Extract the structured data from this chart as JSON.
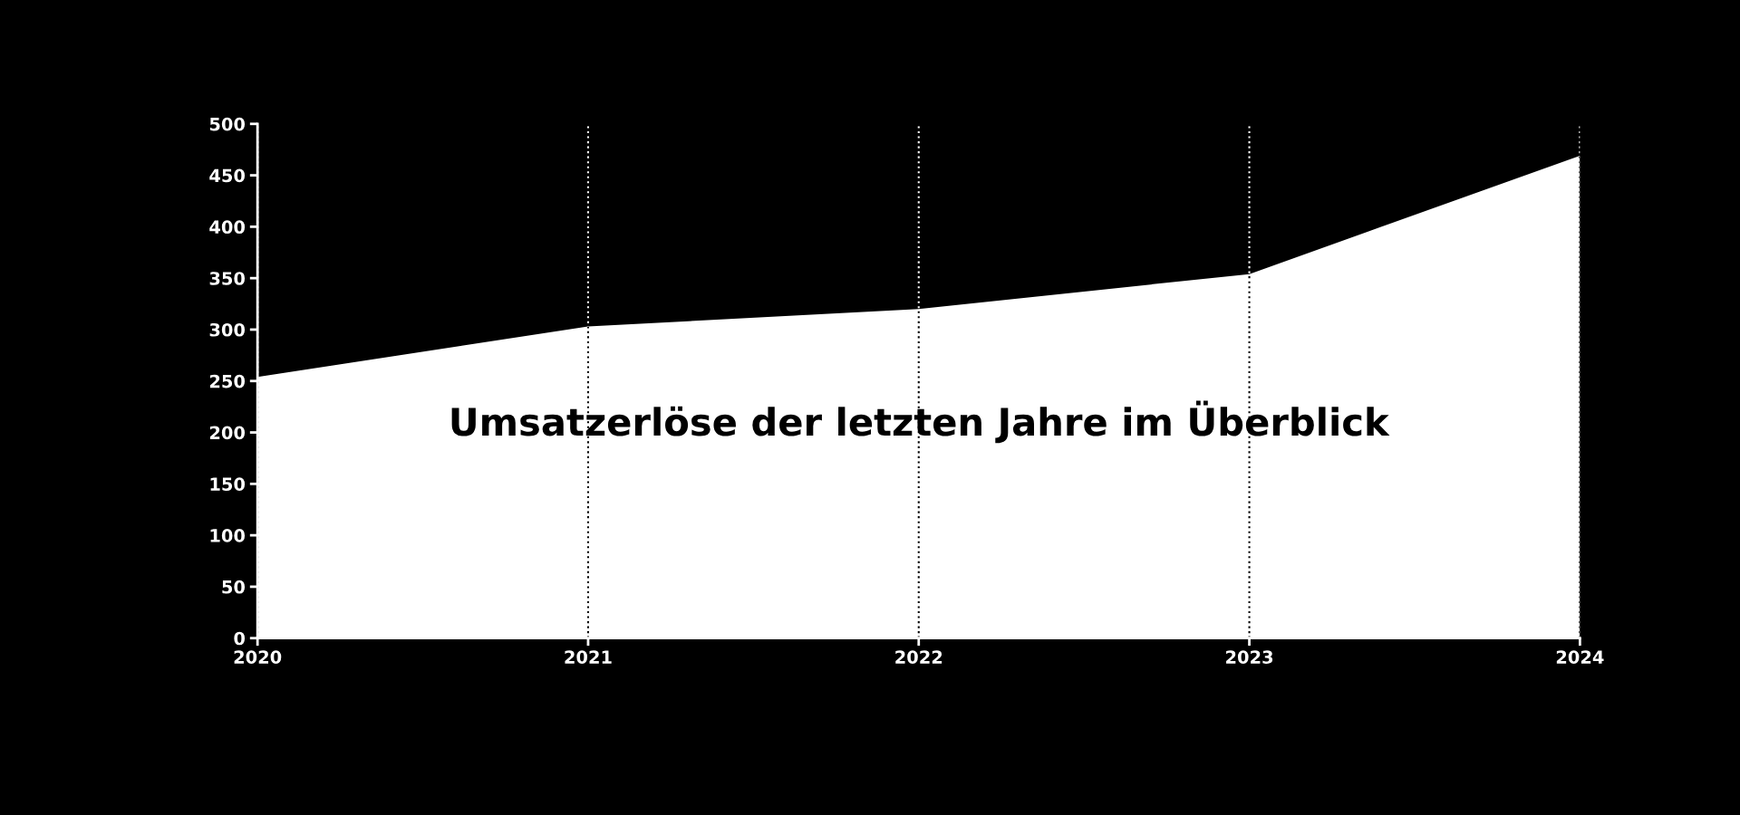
{
  "chart_data": {
    "type": "area",
    "title": "Umsatzerlöse der letzten Jahre im Überblick",
    "x": [
      2020,
      2021,
      2022,
      2023,
      2024
    ],
    "series": [
      {
        "color": "#ffffff",
        "values": [
          254,
          303,
          320,
          354,
          469
        ]
      }
    ],
    "xlim": [
      2020,
      2024
    ],
    "xticks": [
      2020,
      2021,
      2022,
      2023,
      2024
    ],
    "ylim": [
      0,
      500
    ],
    "yticks": [
      0,
      50,
      100,
      150,
      200,
      250,
      300,
      350,
      400,
      450,
      500
    ],
    "grid": "x",
    "line_style": "dotted",
    "legend": false
  }
}
